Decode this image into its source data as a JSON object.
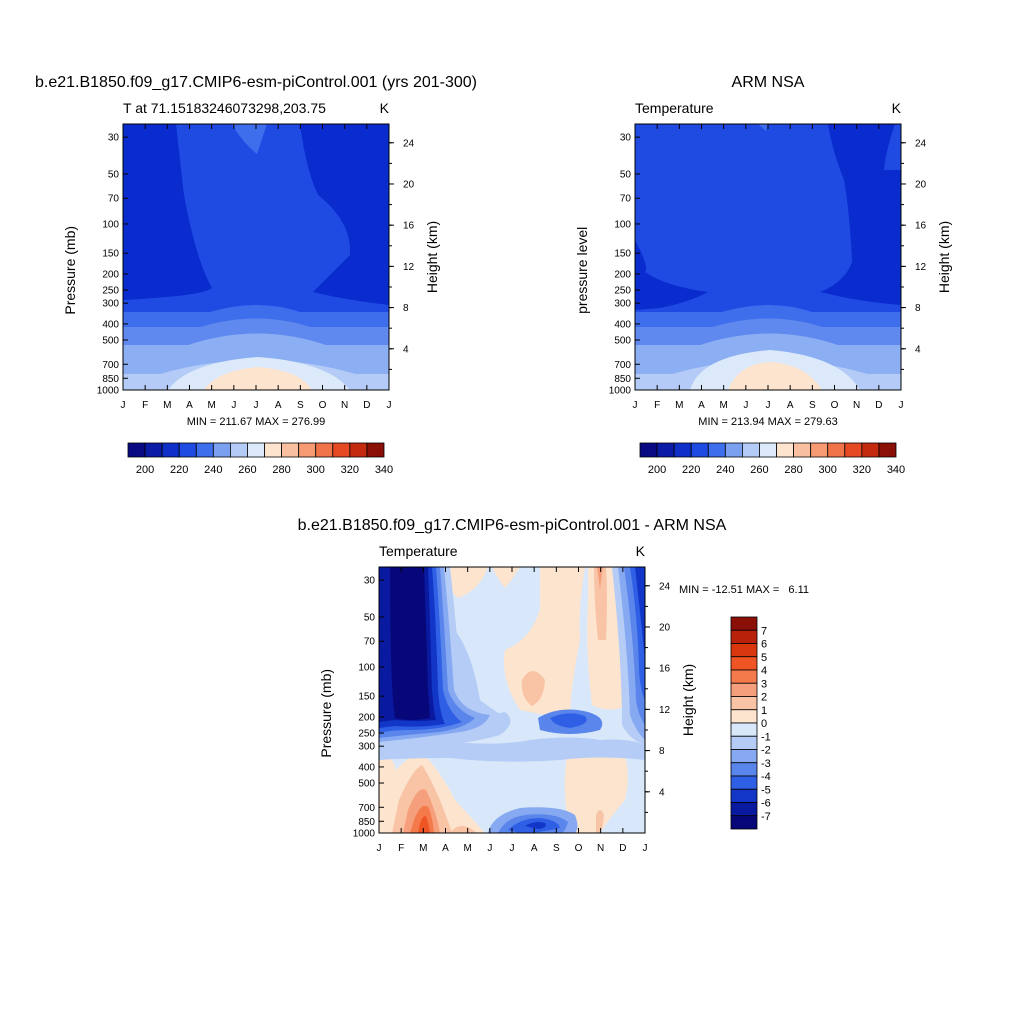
{
  "chart_data": [
    {
      "type": "heatmap",
      "title": "b.e21.B1850.f09_g17.CMIP6-esm-piControl.001 (yrs 201-300)",
      "left_label": "T at 71.15183246073298,203.75",
      "right_label": "K",
      "ylabel": "Pressure (mb)",
      "ylabel_right": "Height (km)",
      "x_ticks": [
        "J",
        "F",
        "M",
        "A",
        "M",
        "J",
        "J",
        "A",
        "S",
        "O",
        "N",
        "D",
        "J"
      ],
      "y_ticks": [
        30,
        50,
        70,
        100,
        150,
        200,
        250,
        300,
        400,
        500,
        700,
        850,
        1000
      ],
      "y_right_ticks": [
        24,
        20,
        16,
        12,
        8,
        4
      ],
      "y_scale": "log",
      "ylim": [
        1000,
        25
      ],
      "stats": "MIN = 211.67 MAX = 276.99",
      "colorbar": {
        "orientation": "horizontal",
        "labels": [
          "200",
          "220",
          "240",
          "260",
          "280",
          "300",
          "320",
          "340"
        ],
        "colors": [
          "#0a0a82",
          "#0d1ca6",
          "#0f2fc8",
          "#1f4be3",
          "#3f6eec",
          "#7ca0f0",
          "#b3cbf6",
          "#dbe9fb",
          "#fde4cf",
          "#f8c0a0",
          "#f59a72",
          "#f0734a",
          "#e54a24",
          "#c42a10",
          "#8a0f07"
        ]
      },
      "band_colors": [
        "#0a2ccf",
        "#1f4be3",
        "#3f6eec",
        "#5f89ef",
        "#8caef3",
        "#b3cbf6",
        "#dbe9fb",
        "#fde4cf"
      ]
    },
    {
      "type": "heatmap",
      "title": "ARM NSA",
      "left_label": "Temperature",
      "right_label": "K",
      "ylabel": "pressure level",
      "ylabel_right": "Height (km)",
      "x_ticks": [
        "J",
        "F",
        "M",
        "A",
        "M",
        "J",
        "J",
        "A",
        "S",
        "O",
        "N",
        "D",
        "J"
      ],
      "y_ticks": [
        30,
        50,
        70,
        100,
        150,
        200,
        250,
        300,
        400,
        500,
        700,
        850,
        1000
      ],
      "y_right_ticks": [
        24,
        20,
        16,
        12,
        8,
        4
      ],
      "y_scale": "log",
      "ylim": [
        1000,
        25
      ],
      "stats": "MIN = 213.94 MAX = 279.63",
      "colorbar": {
        "orientation": "horizontal",
        "labels": [
          "200",
          "220",
          "240",
          "260",
          "280",
          "300",
          "320",
          "340"
        ],
        "colors": [
          "#0a0a82",
          "#0d1ca6",
          "#0f2fc8",
          "#1f4be3",
          "#3f6eec",
          "#7ca0f0",
          "#b3cbf6",
          "#dbe9fb",
          "#fde4cf",
          "#f8c0a0",
          "#f59a72",
          "#f0734a",
          "#e54a24",
          "#c42a10",
          "#8a0f07"
        ]
      },
      "band_colors": [
        "#0a2ccf",
        "#1f4be3",
        "#3f6eec",
        "#5f89ef",
        "#8caef3",
        "#b3cbf6",
        "#dbe9fb",
        "#fde4cf"
      ]
    },
    {
      "type": "heatmap",
      "title": "b.e21.B1850.f09_g17.CMIP6-esm-piControl.001 - ARM NSA",
      "left_label": "Temperature",
      "right_label": "K",
      "ylabel": "Pressure (mb)",
      "ylabel_right": "Height (km)",
      "x_ticks": [
        "J",
        "F",
        "M",
        "A",
        "M",
        "J",
        "J",
        "A",
        "S",
        "O",
        "N",
        "D",
        "J"
      ],
      "y_ticks": [
        30,
        50,
        70,
        100,
        150,
        200,
        250,
        300,
        400,
        500,
        700,
        850,
        1000
      ],
      "y_right_ticks": [
        24,
        20,
        16,
        12,
        8,
        4
      ],
      "y_scale": "log",
      "ylim": [
        1000,
        25
      ],
      "stats": "MIN = -12.51 MAX =   6.11",
      "colorbar": {
        "orientation": "vertical",
        "labels": [
          "7",
          "6",
          "5",
          "4",
          "3",
          "2",
          "1",
          "0",
          "-1",
          "-2",
          "-3",
          "-4",
          "-5",
          "-6",
          "-7"
        ],
        "colors": [
          "#8a0f07",
          "#b8220b",
          "#d9380f",
          "#ef5424",
          "#f47a4c",
          "#f69f7c",
          "#f9c4a6",
          "#fde4cf",
          "#d8e8fa",
          "#b4ccf6",
          "#86a9f1",
          "#5a86ec",
          "#2f5fe4",
          "#1236c8",
          "#0a1aa0",
          "#07077a"
        ]
      },
      "diff_colors": {
        "neg7": "#07077a",
        "neg6": "#0a1aa0",
        "neg5": "#1236c8",
        "neg4": "#2f5fe4",
        "neg3": "#5a86ec",
        "neg2": "#86a9f1",
        "neg1": "#b4ccf6",
        "neg0": "#d8e8fa",
        "pos0": "#fde4cf",
        "pos1": "#f9c4a6",
        "pos2": "#f69f7c",
        "pos3": "#f47a4c",
        "pos4": "#ef5424"
      }
    }
  ]
}
